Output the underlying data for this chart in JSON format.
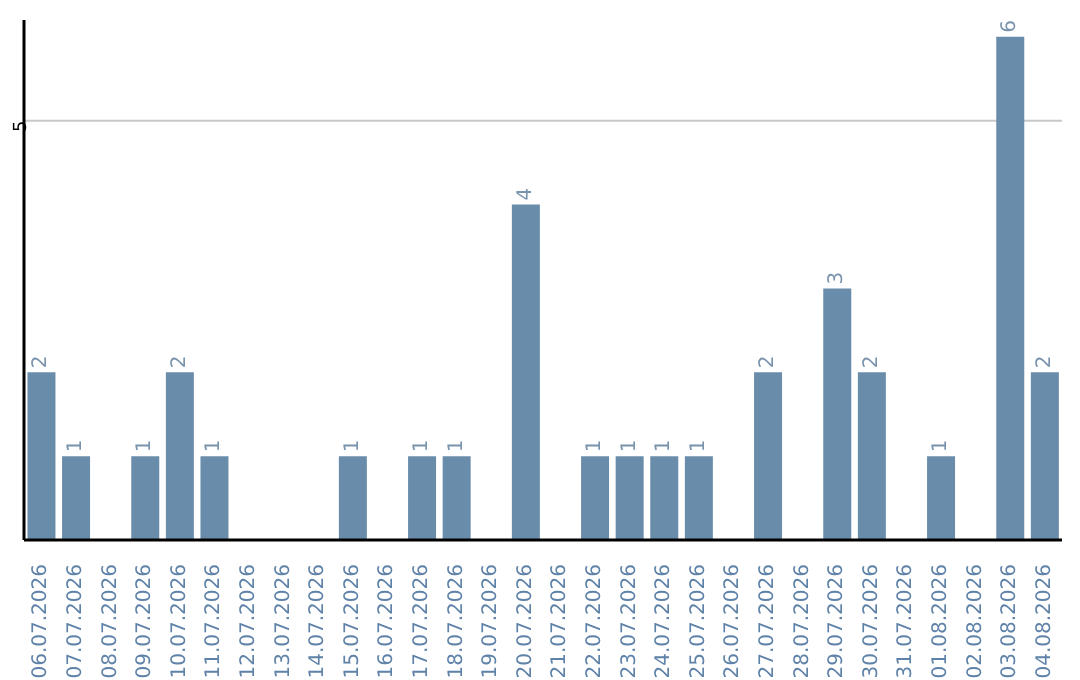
{
  "chart_data": {
    "type": "bar",
    "categories": [
      "06.07.2026",
      "07.07.2026",
      "08.07.2026",
      "09.07.2026",
      "10.07.2026",
      "11.07.2026",
      "12.07.2026",
      "13.07.2026",
      "14.07.2026",
      "15.07.2026",
      "16.07.2026",
      "17.07.2026",
      "18.07.2026",
      "19.07.2026",
      "20.07.2026",
      "21.07.2026",
      "22.07.2026",
      "23.07.2026",
      "24.07.2026",
      "25.07.2026",
      "26.07.2026",
      "27.07.2026",
      "28.07.2026",
      "29.07.2026",
      "30.07.2026",
      "31.07.2026",
      "01.08.2026",
      "02.08.2026",
      "03.08.2026",
      "04.08.2026"
    ],
    "values": [
      2,
      1,
      0,
      1,
      2,
      1,
      0,
      0,
      0,
      1,
      0,
      1,
      1,
      0,
      4,
      0,
      1,
      1,
      1,
      1,
      0,
      2,
      0,
      3,
      2,
      0,
      1,
      0,
      6,
      2
    ],
    "value_labels": [
      "2",
      "1",
      null,
      "1",
      "2",
      "1",
      null,
      null,
      null,
      "1",
      null,
      "1",
      "1",
      null,
      "4",
      null,
      "1",
      "1",
      "1",
      "1",
      null,
      "2",
      null,
      "3",
      "2",
      null,
      "1",
      null,
      "6",
      "2"
    ],
    "color": "#6a8cab",
    "ylim": [
      0,
      6.2
    ],
    "yticks": [
      5
    ],
    "grid": "y"
  }
}
